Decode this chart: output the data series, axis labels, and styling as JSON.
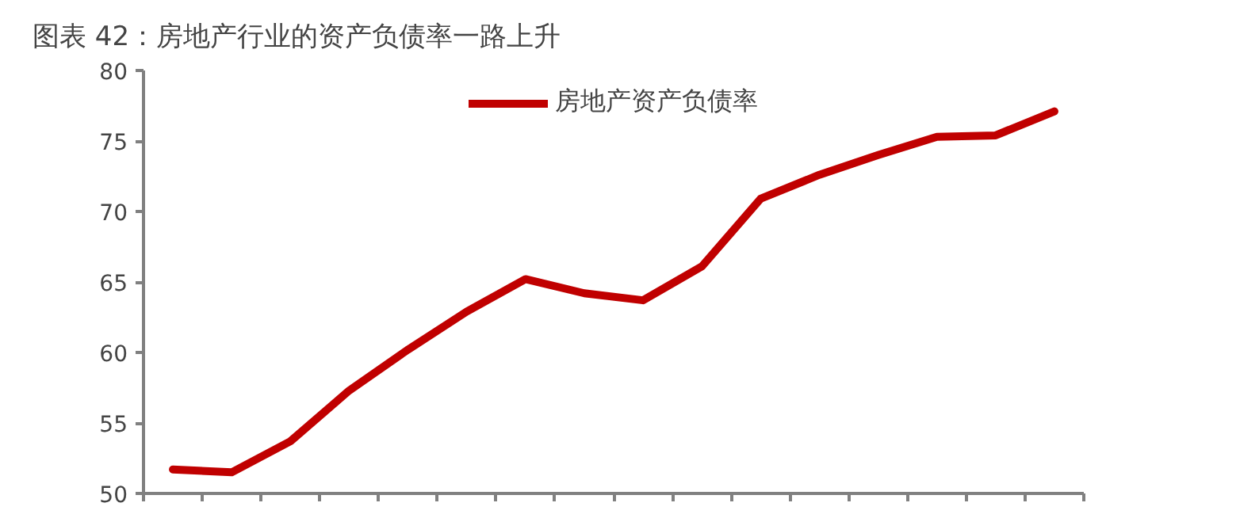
{
  "chart_data": {
    "type": "line",
    "title": "图表 42：房地产行业的资产负债率一路上升",
    "categories": [
      null,
      null,
      null,
      null,
      null,
      null,
      null,
      null,
      null,
      null,
      null,
      null,
      null,
      null,
      null,
      null
    ],
    "series": [
      {
        "name": "房地产资产负债率",
        "color": "#c00000",
        "values": [
          51.7,
          51.5,
          53.7,
          57.3,
          60.2,
          62.9,
          65.2,
          64.2,
          63.7,
          66.1,
          70.9,
          72.6,
          74.0,
          75.3,
          75.4,
          77.1
        ]
      }
    ],
    "ylim": [
      50,
      80
    ],
    "yticks": [
      50,
      55,
      60,
      65,
      70,
      75,
      80
    ],
    "grid": false,
    "legend": "top",
    "tick_labels": "y"
  }
}
